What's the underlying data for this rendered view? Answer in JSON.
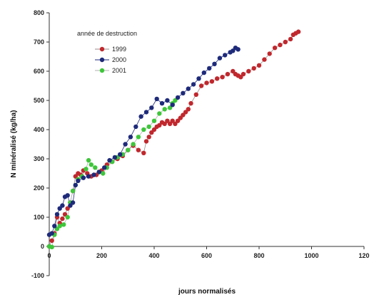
{
  "chart_data": {
    "type": "scatter",
    "title": "",
    "xlabel": "jours normalisés",
    "ylabel": "N minéralisé (kg/ha)",
    "xlim": [
      0,
      1200
    ],
    "ylim": [
      -100,
      800
    ],
    "x_ticks": [
      "0",
      "200",
      "400",
      "600",
      "800",
      "1000",
      "120"
    ],
    "y_ticks": [
      "-100",
      "0",
      "100",
      "200",
      "300",
      "400",
      "500",
      "600",
      "700",
      "800"
    ],
    "grid": false,
    "legend": {
      "title": "année de destruction",
      "position": "top-left"
    },
    "series": [
      {
        "name": "1999",
        "color": "#c0282d",
        "line_color": "#9a8a8a",
        "points": [
          [
            0,
            0
          ],
          [
            10,
            20
          ],
          [
            20,
            45
          ],
          [
            30,
            100
          ],
          [
            40,
            80
          ],
          [
            50,
            95
          ],
          [
            60,
            110
          ],
          [
            70,
            130
          ],
          [
            80,
            150
          ],
          [
            90,
            190
          ],
          [
            100,
            240
          ],
          [
            110,
            250
          ],
          [
            120,
            245
          ],
          [
            130,
            260
          ],
          [
            145,
            250
          ],
          [
            160,
            240
          ],
          [
            180,
            245
          ],
          [
            200,
            260
          ],
          [
            220,
            280
          ],
          [
            240,
            290
          ],
          [
            260,
            300
          ],
          [
            280,
            310
          ],
          [
            300,
            330
          ],
          [
            320,
            345
          ],
          [
            340,
            330
          ],
          [
            360,
            320
          ],
          [
            370,
            360
          ],
          [
            380,
            375
          ],
          [
            390,
            390
          ],
          [
            400,
            400
          ],
          [
            410,
            410
          ],
          [
            420,
            415
          ],
          [
            430,
            425
          ],
          [
            440,
            420
          ],
          [
            450,
            430
          ],
          [
            460,
            420
          ],
          [
            470,
            430
          ],
          [
            480,
            420
          ],
          [
            490,
            430
          ],
          [
            500,
            440
          ],
          [
            510,
            450
          ],
          [
            520,
            460
          ],
          [
            530,
            470
          ],
          [
            540,
            490
          ],
          [
            560,
            520
          ],
          [
            580,
            550
          ],
          [
            600,
            560
          ],
          [
            620,
            565
          ],
          [
            640,
            575
          ],
          [
            660,
            580
          ],
          [
            680,
            590
          ],
          [
            700,
            600
          ],
          [
            710,
            590
          ],
          [
            720,
            585
          ],
          [
            730,
            580
          ],
          [
            740,
            590
          ],
          [
            760,
            600
          ],
          [
            780,
            610
          ],
          [
            800,
            620
          ],
          [
            820,
            640
          ],
          [
            840,
            660
          ],
          [
            860,
            680
          ],
          [
            880,
            690
          ],
          [
            900,
            700
          ],
          [
            920,
            710
          ],
          [
            930,
            725
          ],
          [
            940,
            730
          ],
          [
            950,
            735
          ]
        ]
      },
      {
        "name": "2000",
        "color": "#1e2a7a",
        "line_color": "#1e2a7a",
        "points": [
          [
            0,
            40
          ],
          [
            10,
            45
          ],
          [
            20,
            70
          ],
          [
            30,
            110
          ],
          [
            40,
            130
          ],
          [
            50,
            140
          ],
          [
            60,
            170
          ],
          [
            70,
            175
          ],
          [
            80,
            140
          ],
          [
            90,
            150
          ],
          [
            100,
            210
          ],
          [
            110,
            225
          ],
          [
            130,
            235
          ],
          [
            150,
            240
          ],
          [
            170,
            245
          ],
          [
            190,
            255
          ],
          [
            210,
            270
          ],
          [
            230,
            295
          ],
          [
            250,
            305
          ],
          [
            270,
            315
          ],
          [
            290,
            350
          ],
          [
            310,
            375
          ],
          [
            330,
            410
          ],
          [
            350,
            445
          ],
          [
            370,
            460
          ],
          [
            390,
            475
          ],
          [
            410,
            505
          ],
          [
            430,
            490
          ],
          [
            450,
            500
          ],
          [
            470,
            485
          ],
          [
            490,
            510
          ],
          [
            510,
            525
          ],
          [
            530,
            540
          ],
          [
            550,
            555
          ],
          [
            570,
            575
          ],
          [
            590,
            595
          ],
          [
            610,
            610
          ],
          [
            630,
            625
          ],
          [
            650,
            645
          ],
          [
            670,
            655
          ],
          [
            690,
            665
          ],
          [
            700,
            670
          ],
          [
            710,
            680
          ],
          [
            720,
            675
          ]
        ]
      },
      {
        "name": "2001",
        "color": "#3ec63a",
        "line_color": "#b0b0b0",
        "points": [
          [
            0,
            0
          ],
          [
            10,
            -2
          ],
          [
            20,
            40
          ],
          [
            30,
            60
          ],
          [
            40,
            70
          ],
          [
            55,
            75
          ],
          [
            70,
            100
          ],
          [
            80,
            150
          ],
          [
            90,
            190
          ],
          [
            100,
            210
          ],
          [
            110,
            230
          ],
          [
            125,
            240
          ],
          [
            140,
            265
          ],
          [
            150,
            295
          ],
          [
            160,
            280
          ],
          [
            175,
            270
          ],
          [
            190,
            255
          ],
          [
            205,
            250
          ],
          [
            220,
            270
          ],
          [
            240,
            290
          ],
          [
            260,
            305
          ],
          [
            280,
            315
          ],
          [
            300,
            330
          ],
          [
            320,
            350
          ],
          [
            340,
            375
          ],
          [
            360,
            400
          ],
          [
            380,
            410
          ],
          [
            400,
            430
          ],
          [
            420,
            455
          ],
          [
            440,
            470
          ],
          [
            460,
            475
          ],
          [
            470,
            490
          ],
          [
            480,
            500
          ]
        ]
      }
    ]
  }
}
